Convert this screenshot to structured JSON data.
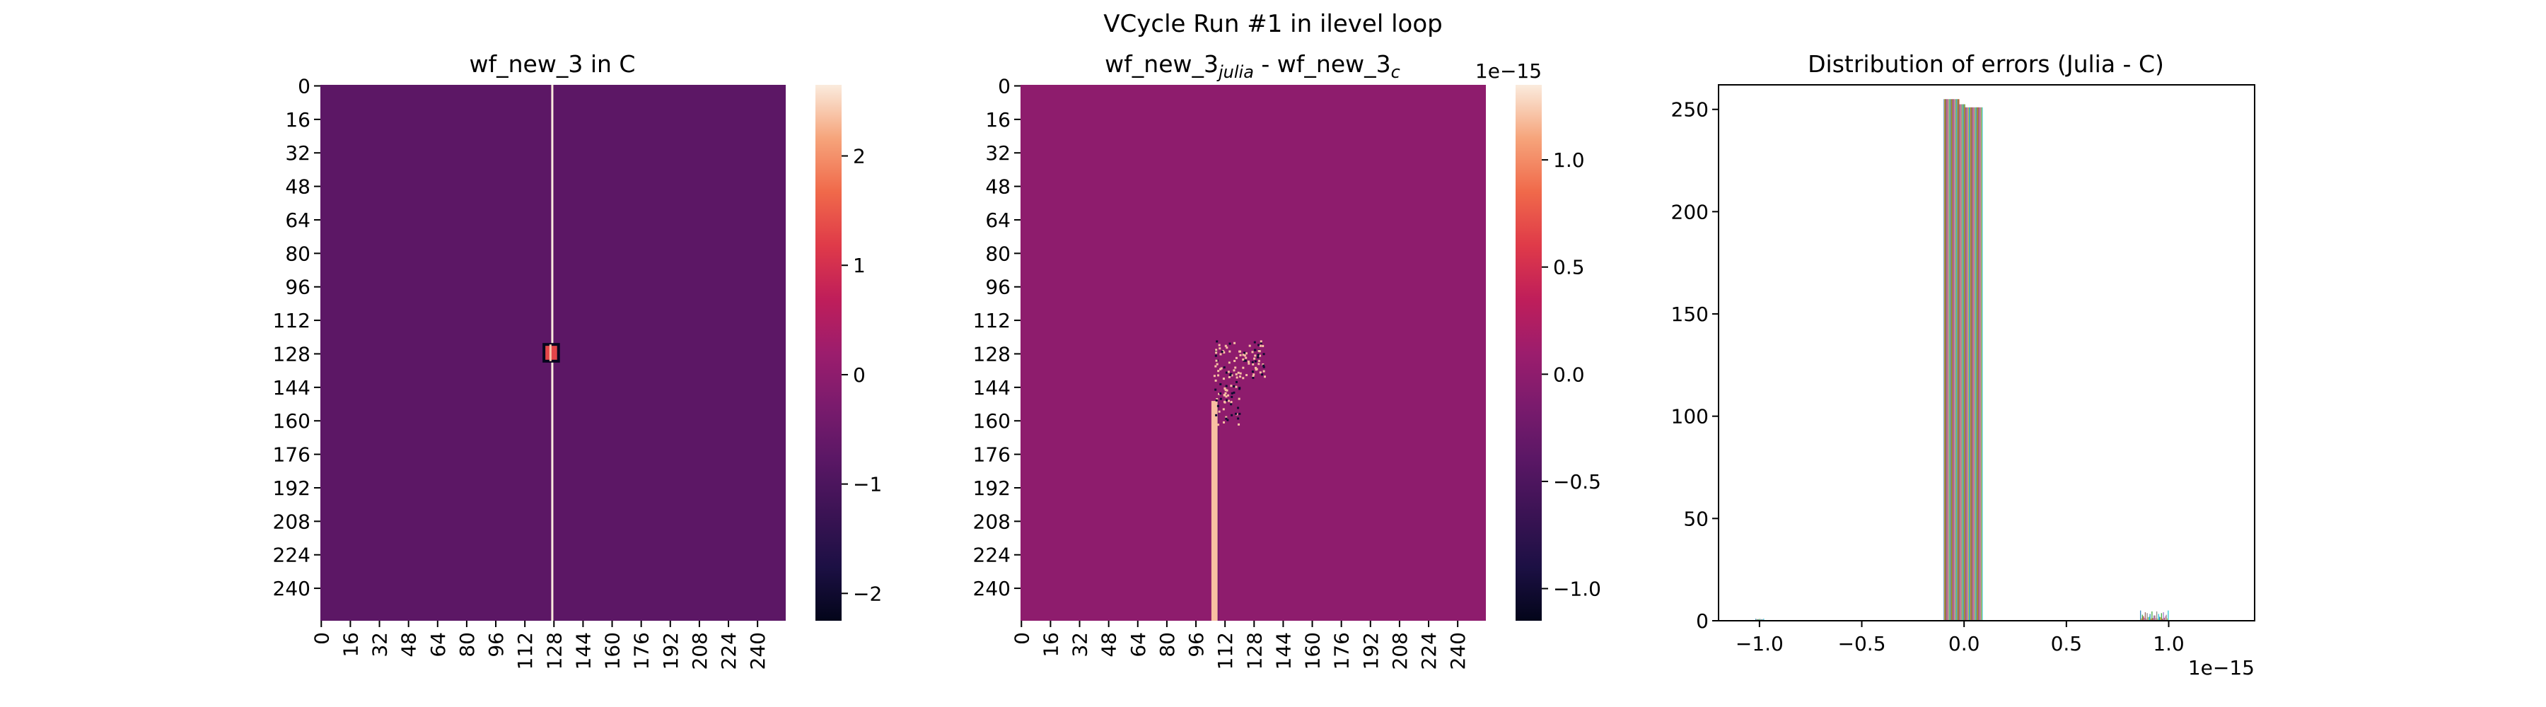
{
  "figure": {
    "suptitle": "VCycle Run #1 in ilevel loop"
  },
  "chart_data": [
    {
      "type": "heatmap",
      "title": "wf_new_3 in C",
      "rows": 256,
      "cols": 256,
      "xticks": [
        "0",
        "16",
        "32",
        "48",
        "64",
        "80",
        "96",
        "112",
        "128",
        "144",
        "160",
        "176",
        "192",
        "208",
        "224",
        "240"
      ],
      "yticks": [
        "0",
        "16",
        "32",
        "48",
        "64",
        "80",
        "96",
        "112",
        "128",
        "144",
        "160",
        "176",
        "192",
        "208",
        "224",
        "240"
      ],
      "background_value": -0.75,
      "features": [
        {
          "kind": "column-line",
          "col": 127,
          "value": 2.7
        },
        {
          "kind": "block",
          "row_start": 124,
          "row_end": 132,
          "col_start": 123,
          "col_end": 131,
          "value": 1.3,
          "border_value": -2.2
        }
      ],
      "colorbar": {
        "min": -2.25,
        "max": 2.65,
        "ticks": [
          -2,
          -1,
          0,
          1,
          2
        ],
        "tick_labels": [
          "−2",
          "−1",
          "0",
          "1",
          "2"
        ],
        "exponent": ""
      }
    },
    {
      "type": "heatmap",
      "title_main": "wf_new_3",
      "title_sub1": "julia",
      "title_mid": " - wf_new_3",
      "title_sub2": "c",
      "rows": 256,
      "cols": 256,
      "xticks": [
        "0",
        "16",
        "32",
        "48",
        "64",
        "80",
        "96",
        "112",
        "128",
        "144",
        "160",
        "176",
        "192",
        "208",
        "224",
        "240"
      ],
      "yticks": [
        "0",
        "16",
        "32",
        "48",
        "64",
        "80",
        "96",
        "112",
        "128",
        "144",
        "160",
        "176",
        "192",
        "208",
        "224",
        "240"
      ],
      "background_value": 0.0,
      "features": [
        {
          "kind": "column-strip",
          "col_start": 105,
          "col_end": 109,
          "row_start": 151,
          "row_end": 256,
          "value": 1.2
        },
        {
          "kind": "scatter-cluster",
          "row_start": 122,
          "row_end": 162,
          "col_start": 106,
          "col_end": 134
        }
      ],
      "colorbar": {
        "min": -1.15,
        "max": 1.35,
        "ticks": [
          -1.0,
          -0.5,
          0.0,
          0.5,
          1.0
        ],
        "tick_labels": [
          "−1.0",
          "−0.5",
          "0.0",
          "0.5",
          "1.0"
        ],
        "exponent": "1e−15"
      }
    },
    {
      "type": "bar",
      "subtype": "histogram",
      "title": "Distribution of errors (Julia - C)",
      "xlim": [
        -1.2e-15,
        1.42e-15
      ],
      "ylim": [
        0,
        262
      ],
      "xticks": [
        -1e-15,
        -5e-16,
        0.0,
        5e-16,
        1e-15
      ],
      "xtick_labels": [
        "−1.0",
        "−0.5",
        "0.0",
        "0.5",
        "1.0"
      ],
      "x_exponent": "1e−15",
      "yticks": [
        0,
        50,
        100,
        150,
        200,
        250
      ],
      "ytick_labels": [
        "0",
        "50",
        "100",
        "150",
        "200",
        "250"
      ],
      "bin_groups": [
        {
          "x_start": -1e-16,
          "x_end": 9e-17,
          "counts_max": 255,
          "counts_min": 250
        },
        {
          "x_start": 8.6e-16,
          "x_end": 1e-15,
          "counts_max": 5,
          "counts_min": 1
        },
        {
          "x_start": -1.02e-15,
          "x_end": -9.8e-16,
          "counts_max": 1,
          "counts_min": 0
        }
      ]
    }
  ]
}
